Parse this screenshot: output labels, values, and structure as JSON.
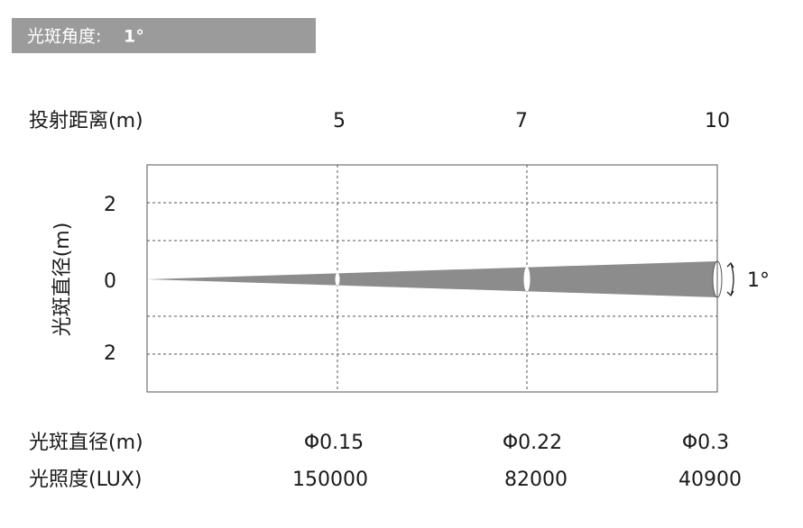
{
  "header": {
    "label": "光斑角度:",
    "value": "1°"
  },
  "y_axis": {
    "title": "光斑直径(m)",
    "ticks": [
      "2",
      "0",
      "2"
    ]
  },
  "angle_label": "1°",
  "rows": [
    {
      "label": "投射距离(m)",
      "values": [
        "5",
        "7",
        "10"
      ]
    },
    {
      "label": "光斑直径(m)",
      "values": [
        "Φ0.15",
        "Φ0.22",
        "Φ0.3"
      ]
    },
    {
      "label": "光照度(LUX)",
      "values": [
        "150000",
        "82000",
        "40900"
      ]
    }
  ]
}
